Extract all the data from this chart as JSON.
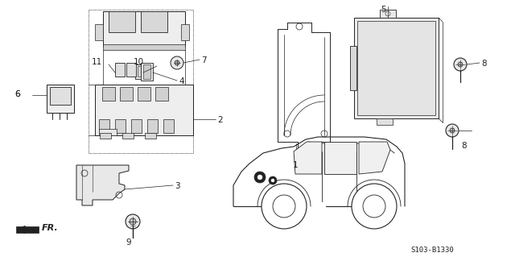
{
  "bg_color": "#ffffff",
  "line_color": "#444444",
  "dc": "#222222",
  "gray": "#aaaaaa",
  "lgray": "#cccccc",
  "part_code": "S103-B1330",
  "figsize": [
    6.4,
    3.19
  ],
  "dpi": 100
}
